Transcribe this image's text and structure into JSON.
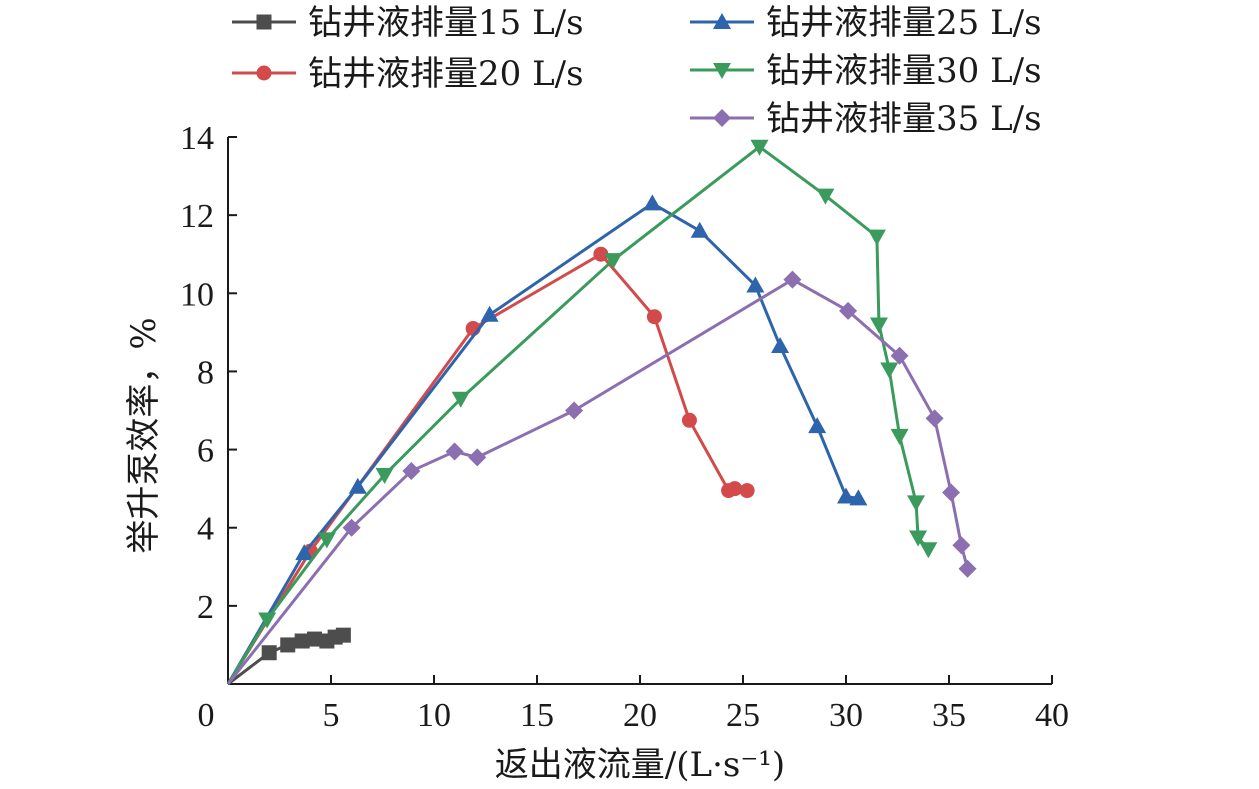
{
  "chart_data": {
    "type": "line",
    "title": "",
    "xlabel": "返出液流量/(L·s⁻¹)",
    "ylabel": "举升泵效率，%",
    "xlim": [
      0,
      40
    ],
    "ylim": [
      0,
      14
    ],
    "xticks": [
      0,
      5,
      10,
      15,
      20,
      25,
      30,
      35,
      40
    ],
    "yticks": [
      2,
      4,
      6,
      8,
      10,
      12,
      14
    ],
    "grid": false,
    "legend_position": "top",
    "series": [
      {
        "name": "钻井液排量15 L/s",
        "color": "#4d4d4d",
        "marker": "square",
        "x": [
          0,
          2.0,
          2.9,
          3.6,
          4.2,
          4.8,
          5.2,
          5.6
        ],
        "y": [
          0,
          0.8,
          1.0,
          1.1,
          1.15,
          1.1,
          1.2,
          1.25
        ]
      },
      {
        "name": "钻井液排量20 L/s",
        "color": "#d24a4a",
        "marker": "circle",
        "x": [
          0,
          4.0,
          11.9,
          18.1,
          20.7,
          22.4,
          24.3,
          24.6,
          25.2
        ],
        "y": [
          0,
          3.4,
          9.1,
          11.0,
          9.4,
          6.75,
          4.95,
          5.0,
          4.95
        ]
      },
      {
        "name": "钻井液排量25 L/s",
        "color": "#2e64ab",
        "marker": "triangle-up",
        "x": [
          0,
          3.7,
          6.3,
          12.7,
          20.6,
          22.9,
          25.6,
          26.8,
          28.6,
          30.0,
          30.6
        ],
        "y": [
          0,
          3.35,
          5.05,
          9.45,
          12.3,
          11.6,
          10.2,
          8.65,
          6.6,
          4.8,
          4.75
        ]
      },
      {
        "name": "钻井液排量30 L/s",
        "color": "#3a9b5c",
        "marker": "triangle-down",
        "x": [
          0,
          1.9,
          4.8,
          7.6,
          11.3,
          18.7,
          25.8,
          29.0,
          31.5,
          31.6,
          32.1,
          32.6,
          33.4,
          33.5,
          34.0
        ],
        "y": [
          0,
          1.65,
          3.7,
          5.35,
          7.3,
          10.85,
          13.75,
          12.5,
          11.45,
          9.2,
          8.05,
          6.35,
          4.65,
          3.75,
          3.45
        ]
      },
      {
        "name": "钻井液排量35 L/s",
        "color": "#8b6fb1",
        "marker": "diamond",
        "x": [
          0,
          6.0,
          8.9,
          11.0,
          12.1,
          16.8,
          27.4,
          30.1,
          32.6,
          34.3,
          35.1,
          35.6,
          35.9
        ],
        "y": [
          0,
          4.0,
          5.45,
          5.95,
          5.8,
          7.0,
          10.35,
          9.55,
          8.4,
          6.8,
          4.9,
          3.55,
          2.95
        ]
      }
    ]
  }
}
